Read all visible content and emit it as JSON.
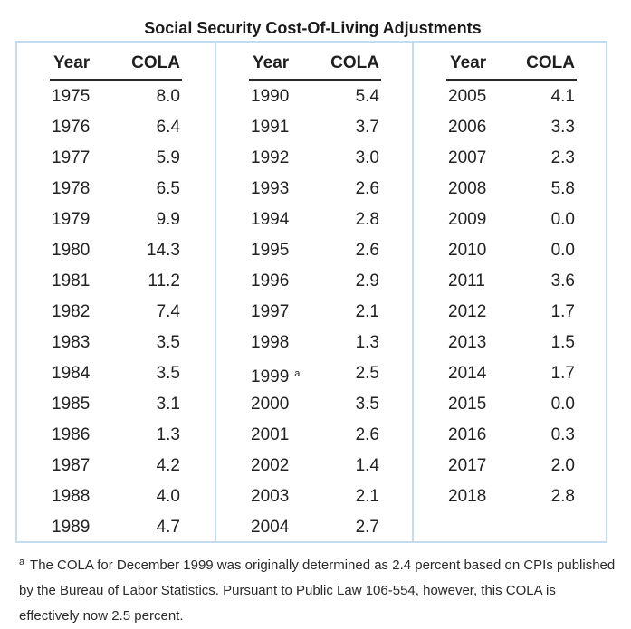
{
  "title": "Social Security Cost-Of-Living Adjustments",
  "headers": {
    "year": "Year",
    "cola": "COLA"
  },
  "columns": [
    {
      "rows": [
        {
          "year": "1975",
          "cola": "8.0"
        },
        {
          "year": "1976",
          "cola": "6.4"
        },
        {
          "year": "1977",
          "cola": "5.9"
        },
        {
          "year": "1978",
          "cola": "6.5"
        },
        {
          "year": "1979",
          "cola": "9.9"
        },
        {
          "year": "1980",
          "cola": "14.3"
        },
        {
          "year": "1981",
          "cola": "11.2"
        },
        {
          "year": "1982",
          "cola": "7.4"
        },
        {
          "year": "1983",
          "cola": "3.5"
        },
        {
          "year": "1984",
          "cola": "3.5"
        },
        {
          "year": "1985",
          "cola": "3.1"
        },
        {
          "year": "1986",
          "cola": "1.3"
        },
        {
          "year": "1987",
          "cola": "4.2"
        },
        {
          "year": "1988",
          "cola": "4.0"
        },
        {
          "year": "1989",
          "cola": "4.7"
        }
      ]
    },
    {
      "rows": [
        {
          "year": "1990",
          "cola": "5.4"
        },
        {
          "year": "1991",
          "cola": "3.7"
        },
        {
          "year": "1992",
          "cola": "3.0"
        },
        {
          "year": "1993",
          "cola": "2.6"
        },
        {
          "year": "1994",
          "cola": "2.8"
        },
        {
          "year": "1995",
          "cola": "2.6"
        },
        {
          "year": "1996",
          "cola": "2.9"
        },
        {
          "year": "1997",
          "cola": "2.1"
        },
        {
          "year": "1998",
          "cola": "1.3"
        },
        {
          "year": "1999",
          "cola": "2.5",
          "note": "a"
        },
        {
          "year": "2000",
          "cola": "3.5"
        },
        {
          "year": "2001",
          "cola": "2.6"
        },
        {
          "year": "2002",
          "cola": "1.4"
        },
        {
          "year": "2003",
          "cola": "2.1"
        },
        {
          "year": "2004",
          "cola": "2.7"
        }
      ]
    },
    {
      "rows": [
        {
          "year": "2005",
          "cola": "4.1"
        },
        {
          "year": "2006",
          "cola": "3.3"
        },
        {
          "year": "2007",
          "cola": "2.3"
        },
        {
          "year": "2008",
          "cola": "5.8"
        },
        {
          "year": "2009",
          "cola": "0.0"
        },
        {
          "year": "2010",
          "cola": "0.0"
        },
        {
          "year": "2011",
          "cola": "3.6"
        },
        {
          "year": "2012",
          "cola": "1.7"
        },
        {
          "year": "2013",
          "cola": "1.5"
        },
        {
          "year": "2014",
          "cola": "1.7"
        },
        {
          "year": "2015",
          "cola": "0.0"
        },
        {
          "year": "2016",
          "cola": "0.3"
        },
        {
          "year": "2017",
          "cola": "2.0"
        },
        {
          "year": "2018",
          "cola": "2.8"
        }
      ]
    }
  ],
  "footnote": {
    "marker": "a",
    "text": "The COLA for December 1999 was originally determined as 2.4 percent based on CPIs published by the Bureau of Labor Statistics. Pursuant to Public Law 106-554, however, this COLA is effectively now 2.5 percent."
  },
  "colors": {
    "border": "#c5dcef",
    "header_rule": "#2a2a2a",
    "text": "#222222"
  }
}
